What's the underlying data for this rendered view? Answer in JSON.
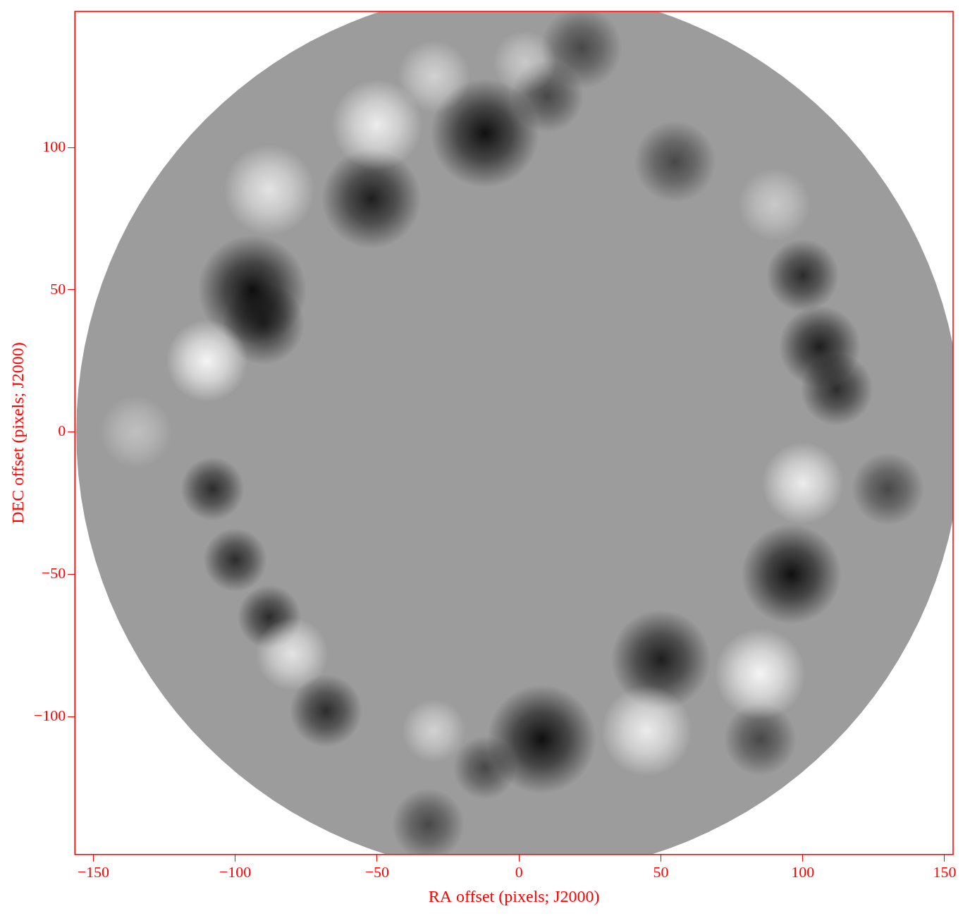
{
  "chart_data": {
    "type": "image",
    "x_label": "RA offset (pixels; J2000)",
    "y_label": "DEC offset (pixels; J2000)",
    "color": "#ff0000",
    "xlim": [
      -156.5,
      153
    ],
    "ylim": [
      -148.5,
      147.8
    ],
    "xticks": [
      {
        "value": -150,
        "label": "−150"
      },
      {
        "value": -100,
        "label": "−100"
      },
      {
        "value": -50,
        "label": "−50"
      },
      0,
      50,
      100,
      150
    ],
    "yticks": [
      {
        "value": -100,
        "label": "−100"
      },
      {
        "value": -50,
        "label": "−50"
      },
      0,
      50,
      100
    ],
    "footprint": {
      "center": [
        0,
        0
      ],
      "radius": 156
    },
    "features": [
      {
        "x": -12,
        "y": 105,
        "r": 12,
        "value": -1
      },
      {
        "x": -52,
        "y": 82,
        "r": 11,
        "value": -0.9
      },
      {
        "x": -94,
        "y": 50,
        "r": 12,
        "value": -1
      },
      {
        "x": -90,
        "y": 38,
        "r": 9,
        "value": -0.8
      },
      {
        "x": 10,
        "y": 118,
        "r": 8,
        "value": -0.6
      },
      {
        "x": 55,
        "y": 95,
        "r": 9,
        "value": -0.6
      },
      {
        "x": 22,
        "y": 135,
        "r": 9,
        "value": -0.6
      },
      {
        "x": 100,
        "y": 55,
        "r": 8,
        "value": -0.8
      },
      {
        "x": 106,
        "y": 30,
        "r": 9,
        "value": -0.9
      },
      {
        "x": 112,
        "y": 15,
        "r": 8,
        "value": -0.8
      },
      {
        "x": 96,
        "y": -50,
        "r": 11,
        "value": -1
      },
      {
        "x": 50,
        "y": -80,
        "r": 11,
        "value": -0.9
      },
      {
        "x": 8,
        "y": -108,
        "r": 12,
        "value": -1
      },
      {
        "x": -12,
        "y": -118,
        "r": 7,
        "value": -0.6
      },
      {
        "x": -32,
        "y": -138,
        "r": 8,
        "value": -0.6
      },
      {
        "x": 85,
        "y": -108,
        "r": 8,
        "value": -0.6
      },
      {
        "x": -108,
        "y": -20,
        "r": 7,
        "value": -0.8
      },
      {
        "x": -100,
        "y": -45,
        "r": 7,
        "value": -0.8
      },
      {
        "x": -88,
        "y": -65,
        "r": 7,
        "value": -0.8
      },
      {
        "x": -68,
        "y": -98,
        "r": 8,
        "value": -0.8
      },
      {
        "x": 130,
        "y": -20,
        "r": 8,
        "value": -0.6
      },
      {
        "x": -50,
        "y": 108,
        "r": 10,
        "value": 0.9
      },
      {
        "x": -88,
        "y": 85,
        "r": 10,
        "value": 0.8
      },
      {
        "x": -110,
        "y": 25,
        "r": 9,
        "value": 1
      },
      {
        "x": -30,
        "y": 125,
        "r": 8,
        "value": 0.6
      },
      {
        "x": 2,
        "y": 130,
        "r": 7,
        "value": 0.5
      },
      {
        "x": 100,
        "y": -18,
        "r": 9,
        "value": 0.9
      },
      {
        "x": 85,
        "y": -85,
        "r": 10,
        "value": 1
      },
      {
        "x": 45,
        "y": -105,
        "r": 10,
        "value": 0.9
      },
      {
        "x": -80,
        "y": -78,
        "r": 8,
        "value": 0.8
      },
      {
        "x": -30,
        "y": -105,
        "r": 7,
        "value": 0.6
      },
      {
        "x": 90,
        "y": 80,
        "r": 8,
        "value": 0.5
      },
      {
        "x": -135,
        "y": 0,
        "r": 8,
        "value": 0.4
      }
    ]
  }
}
